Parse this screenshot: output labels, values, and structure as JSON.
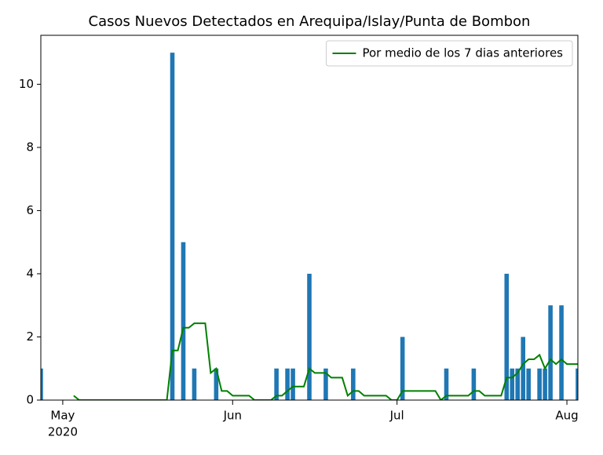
{
  "chart_data": {
    "type": "bar",
    "title": "Casos Nuevos Detectados en Arequipa/Islay/Punta de Bombon",
    "xlim": [
      "2020-04-27",
      "2020-08-03"
    ],
    "ylim": [
      0,
      11.55
    ],
    "yticks": [
      0,
      2,
      4,
      6,
      8,
      10
    ],
    "xticks": [
      {
        "value": "2020-05-01",
        "label": "May"
      },
      {
        "value": "2020-06-01",
        "label": "Jun"
      },
      {
        "value": "2020-07-01",
        "label": "Jul"
      },
      {
        "value": "2020-08-01",
        "label": "Aug"
      }
    ],
    "x_year_label": "2020",
    "legend_loc": "upper right",
    "series": [
      {
        "type": "bar",
        "color": "#1f77b4",
        "x": [
          "2020-04-27",
          "2020-05-21",
          "2020-05-23",
          "2020-05-25",
          "2020-05-29",
          "2020-06-09",
          "2020-06-11",
          "2020-06-12",
          "2020-06-15",
          "2020-06-18",
          "2020-06-23",
          "2020-07-02",
          "2020-07-10",
          "2020-07-15",
          "2020-07-21",
          "2020-07-22",
          "2020-07-23",
          "2020-07-24",
          "2020-07-25",
          "2020-07-27",
          "2020-07-28",
          "2020-07-29",
          "2020-07-31",
          "2020-08-03"
        ],
        "values": [
          1,
          11,
          5,
          1,
          1,
          1,
          1,
          1,
          4,
          1,
          1,
          2,
          1,
          1,
          4,
          1,
          1,
          2,
          1,
          1,
          1,
          3,
          3,
          1
        ]
      },
      {
        "type": "line",
        "name": "Por medio de los 7 dias anteriores",
        "color": "#008000",
        "x": [
          "2020-05-03",
          "2020-05-04",
          "2020-05-05",
          "2020-05-06",
          "2020-05-07",
          "2020-05-08",
          "2020-05-09",
          "2020-05-10",
          "2020-05-11",
          "2020-05-12",
          "2020-05-13",
          "2020-05-14",
          "2020-05-15",
          "2020-05-16",
          "2020-05-17",
          "2020-05-18",
          "2020-05-19",
          "2020-05-20",
          "2020-05-21",
          "2020-05-22",
          "2020-05-23",
          "2020-05-24",
          "2020-05-25",
          "2020-05-26",
          "2020-05-27",
          "2020-05-28",
          "2020-05-29",
          "2020-05-30",
          "2020-05-31",
          "2020-06-01",
          "2020-06-02",
          "2020-06-03",
          "2020-06-04",
          "2020-06-05",
          "2020-06-06",
          "2020-06-07",
          "2020-06-08",
          "2020-06-09",
          "2020-06-10",
          "2020-06-11",
          "2020-06-12",
          "2020-06-13",
          "2020-06-14",
          "2020-06-15",
          "2020-06-16",
          "2020-06-17",
          "2020-06-18",
          "2020-06-19",
          "2020-06-20",
          "2020-06-21",
          "2020-06-22",
          "2020-06-23",
          "2020-06-24",
          "2020-06-25",
          "2020-06-26",
          "2020-06-27",
          "2020-06-28",
          "2020-06-29",
          "2020-06-30",
          "2020-07-01",
          "2020-07-02",
          "2020-07-03",
          "2020-07-04",
          "2020-07-05",
          "2020-07-06",
          "2020-07-07",
          "2020-07-08",
          "2020-07-09",
          "2020-07-10",
          "2020-07-11",
          "2020-07-12",
          "2020-07-13",
          "2020-07-14",
          "2020-07-15",
          "2020-07-16",
          "2020-07-17",
          "2020-07-18",
          "2020-07-19",
          "2020-07-20",
          "2020-07-21",
          "2020-07-22",
          "2020-07-23",
          "2020-07-24",
          "2020-07-25",
          "2020-07-26",
          "2020-07-27",
          "2020-07-28",
          "2020-07-29",
          "2020-07-30",
          "2020-07-31",
          "2020-08-01",
          "2020-08-02",
          "2020-08-03"
        ],
        "values": [
          0.14,
          0,
          0,
          0,
          0,
          0,
          0,
          0,
          0,
          0,
          0,
          0,
          0,
          0,
          0,
          0,
          0,
          0,
          1.57,
          1.57,
          2.29,
          2.29,
          2.43,
          2.43,
          2.43,
          0.86,
          1.0,
          0.29,
          0.29,
          0.14,
          0.14,
          0.14,
          0.14,
          0,
          0,
          0,
          0,
          0.14,
          0.14,
          0.29,
          0.43,
          0.43,
          0.43,
          1.0,
          0.86,
          0.86,
          0.86,
          0.71,
          0.71,
          0.71,
          0.14,
          0.29,
          0.29,
          0.14,
          0.14,
          0.14,
          0.14,
          0.14,
          0,
          0,
          0.29,
          0.29,
          0.29,
          0.29,
          0.29,
          0.29,
          0.29,
          0,
          0.14,
          0.14,
          0.14,
          0.14,
          0.14,
          0.29,
          0.29,
          0.14,
          0.14,
          0.14,
          0.14,
          0.71,
          0.71,
          0.86,
          1.14,
          1.29,
          1.29,
          1.43,
          1.0,
          1.29,
          1.14,
          1.29,
          1.14,
          1.14,
          1.14
        ]
      }
    ]
  }
}
